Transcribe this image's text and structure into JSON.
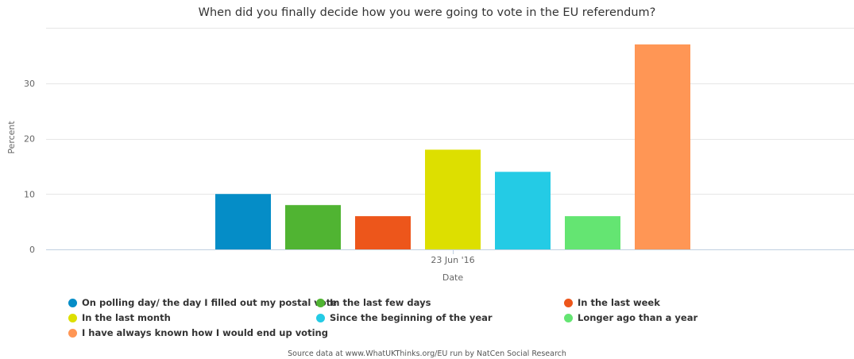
{
  "chart_data": {
    "type": "bar",
    "title": "When did you finally decide how you were going to vote in the EU referendum?",
    "xlabel": "Date",
    "ylabel": "Percent",
    "categories": [
      "23 Jun '16"
    ],
    "ylim": [
      0,
      40
    ],
    "yticks": [
      0,
      10,
      20,
      30
    ],
    "grid": true,
    "legend_position": "bottom",
    "series": [
      {
        "name": "On polling day/ the day I filled out my postal vote",
        "values": [
          10
        ],
        "color": "#058DC7"
      },
      {
        "name": "In the last few days",
        "values": [
          8
        ],
        "color": "#50B432"
      },
      {
        "name": "In the last week",
        "values": [
          6
        ],
        "color": "#ED561B"
      },
      {
        "name": "In the last month",
        "values": [
          18
        ],
        "color": "#DDDF00"
      },
      {
        "name": "Since the beginning of the year",
        "values": [
          14
        ],
        "color": "#24CBE5"
      },
      {
        "name": "Longer ago than a year",
        "values": [
          6
        ],
        "color": "#64E572"
      },
      {
        "name": "I have always known how I would end up voting",
        "values": [
          37
        ],
        "color": "#FF9655"
      }
    ]
  },
  "credits": "Source data at www.WhatUKThinks.org/EU run by NatCen Social Research"
}
